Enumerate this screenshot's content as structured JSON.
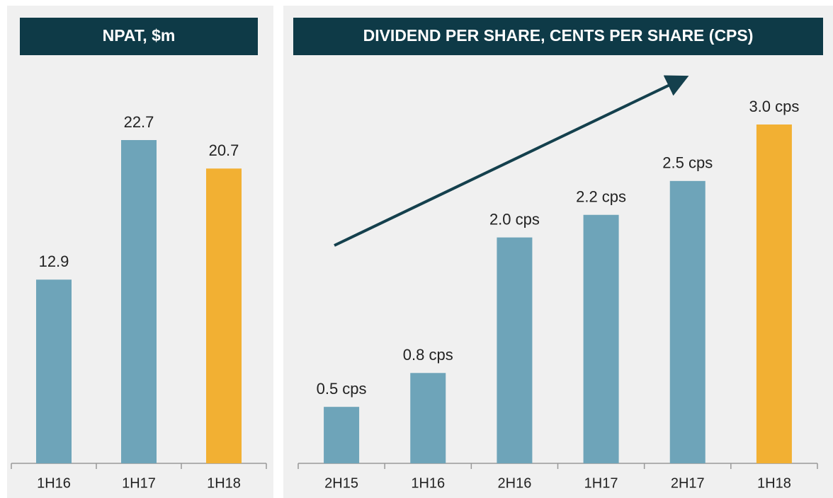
{
  "chart_data": [
    {
      "type": "bar",
      "title": "NPAT, $m",
      "categories": [
        "1H16",
        "1H17",
        "1H18"
      ],
      "values": [
        12.9,
        22.7,
        20.7
      ],
      "colors": [
        "#6ea4b9",
        "#6ea4b9",
        "#f2b033"
      ]
    },
    {
      "type": "bar",
      "title": "DIVIDEND PER SHARE, CENTS PER SHARE (CPS)",
      "categories": [
        "2H15",
        "1H16",
        "2H16",
        "1H17",
        "2H17",
        "1H18"
      ],
      "values": [
        0.5,
        0.8,
        2.0,
        2.2,
        2.5,
        3.0
      ],
      "value_labels": [
        "0.5 cps",
        "0.8 cps",
        "2.0 cps",
        "2.2 cps",
        "2.5 cps",
        "3.0 cps"
      ],
      "colors": [
        "#6ea4b9",
        "#6ea4b9",
        "#6ea4b9",
        "#6ea4b9",
        "#6ea4b9",
        "#f2b033"
      ]
    }
  ]
}
